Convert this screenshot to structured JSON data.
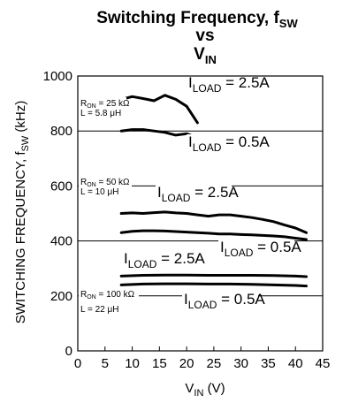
{
  "chart_data": {
    "type": "line",
    "title": {
      "line1_main": "Switching Frequency, f",
      "line1_sub": "SW",
      "line2": "vs",
      "line3_main": "V",
      "line3_sub": "IN"
    },
    "xlabel": {
      "main": "V",
      "sub": "IN",
      "tail": " (V)"
    },
    "ylabel": {
      "main": "SWITCHING FREQUENCY, f",
      "sub": "SW",
      "tail": " (kHz)"
    },
    "xlim": [
      0,
      45
    ],
    "ylim": [
      0,
      1000
    ],
    "x_ticks": [
      "0",
      "5",
      "10",
      "15",
      "20",
      "25",
      "30",
      "35",
      "40",
      "45"
    ],
    "y_ticks": [
      "0",
      "200",
      "400",
      "600",
      "800",
      "1000"
    ],
    "grid": true,
    "conditions": [
      {
        "ron": "R",
        "ron_sub": "ON",
        "ron_val": " = 25 kΩ",
        "l": "L = 5.8 μH"
      },
      {
        "ron": "R",
        "ron_sub": "ON",
        "ron_val": " = 50 kΩ",
        "l": "L = 10 μH"
      },
      {
        "ron": "R",
        "ron_sub": "ON",
        "ron_val": " = 100 kΩ",
        "l": "L = 22 μH"
      }
    ],
    "series": [
      {
        "name": "25k 2.5A",
        "x": [
          8,
          10,
          12,
          14,
          16,
          18,
          20,
          22
        ],
        "y": [
          915,
          925,
          918,
          910,
          930,
          915,
          890,
          830
        ]
      },
      {
        "name": "25k 0.5A",
        "x": [
          8,
          10,
          12,
          14,
          16,
          18,
          20,
          22
        ],
        "y": [
          800,
          805,
          805,
          800,
          795,
          785,
          790,
          775
        ]
      },
      {
        "name": "50k 2.5A",
        "x": [
          8,
          10,
          12,
          14,
          16,
          18,
          20,
          22,
          24,
          26,
          28,
          30,
          32,
          34,
          36,
          38,
          40,
          42
        ],
        "y": [
          500,
          502,
          500,
          503,
          505,
          502,
          500,
          495,
          490,
          495,
          495,
          490,
          485,
          478,
          470,
          458,
          447,
          430
        ]
      },
      {
        "name": "50k 0.5A",
        "x": [
          8,
          10,
          12,
          14,
          16,
          18,
          20,
          22,
          24,
          26,
          28,
          30,
          32,
          34,
          36,
          38,
          40,
          42
        ],
        "y": [
          430,
          435,
          437,
          437,
          436,
          434,
          432,
          430,
          428,
          425,
          425,
          423,
          422,
          420,
          418,
          415,
          410,
          405
        ]
      },
      {
        "name": "100k 2.5A",
        "x": [
          8,
          12,
          16,
          20,
          24,
          28,
          32,
          36,
          40,
          42
        ],
        "y": [
          272,
          275,
          276,
          276,
          275,
          275,
          275,
          274,
          272,
          270
        ]
      },
      {
        "name": "100k 0.5A",
        "x": [
          8,
          12,
          16,
          20,
          24,
          28,
          32,
          36,
          40,
          42
        ],
        "y": [
          240,
          243,
          244,
          244,
          243,
          243,
          242,
          240,
          238,
          236
        ]
      }
    ],
    "annotations": [
      {
        "series": "25k 2.5A",
        "text_main": "I",
        "text_sub": "LOAD",
        "text_tail": " = 2.5A"
      },
      {
        "series": "25k 0.5A",
        "text_main": "I",
        "text_sub": "LOAD",
        "text_tail": " = 0.5A"
      },
      {
        "series": "50k 2.5A",
        "text_main": "I",
        "text_sub": "LOAD",
        "text_tail": " = 2.5A"
      },
      {
        "series": "50k 0.5A",
        "text_main": "I",
        "text_sub": "LOAD",
        "text_tail": " = 0.5A"
      },
      {
        "series": "100k 2.5A",
        "text_main": "I",
        "text_sub": "LOAD",
        "text_tail": " = 2.5A"
      },
      {
        "series": "100k 0.5A",
        "text_main": "I",
        "text_sub": "LOAD",
        "text_tail": " = 0.5A"
      }
    ]
  }
}
